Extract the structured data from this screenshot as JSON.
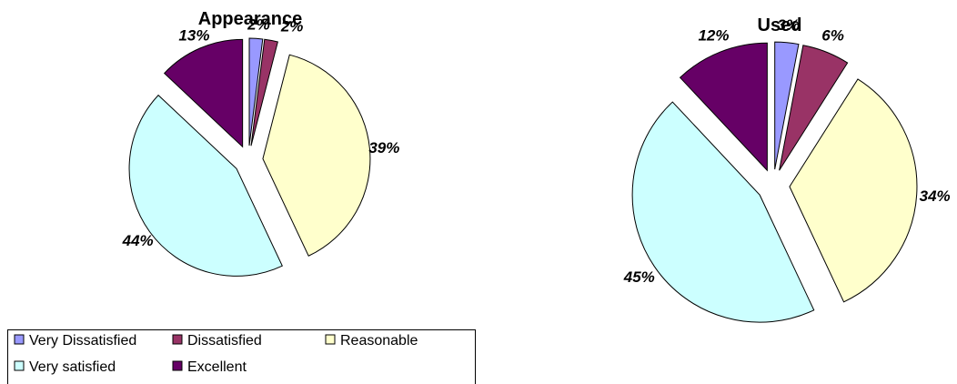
{
  "chart_data": [
    {
      "type": "pie",
      "title": "Appearance",
      "categories": [
        "Very Dissatisfied",
        "Dissatisfied",
        "Reasonable",
        "Very satisfied",
        "Excellent"
      ],
      "values": [
        2,
        2,
        39,
        44,
        13
      ],
      "value_labels": [
        "2%",
        "2%",
        "39%",
        "44%",
        "13%"
      ],
      "exploded": true
    },
    {
      "type": "pie",
      "title": "Used",
      "categories": [
        "Very Dissatisfied",
        "Dissatisfied",
        "Reasonable",
        "Very satisfied",
        "Excellent"
      ],
      "values": [
        3,
        6,
        34,
        45,
        12
      ],
      "value_labels": [
        "3%",
        "6%",
        "34%",
        "45%",
        "12%"
      ],
      "exploded": true
    }
  ],
  "legend": {
    "placement": "bottom-left",
    "items": [
      {
        "label": "Very Dissatisfied",
        "color": "#9999FF"
      },
      {
        "label": "Dissatisfied",
        "color": "#993366"
      },
      {
        "label": "Reasonable",
        "color": "#FFFFCC"
      },
      {
        "label": "Very satisfied",
        "color": "#CCFFFF"
      },
      {
        "label": "Excellent",
        "color": "#660066"
      }
    ]
  }
}
